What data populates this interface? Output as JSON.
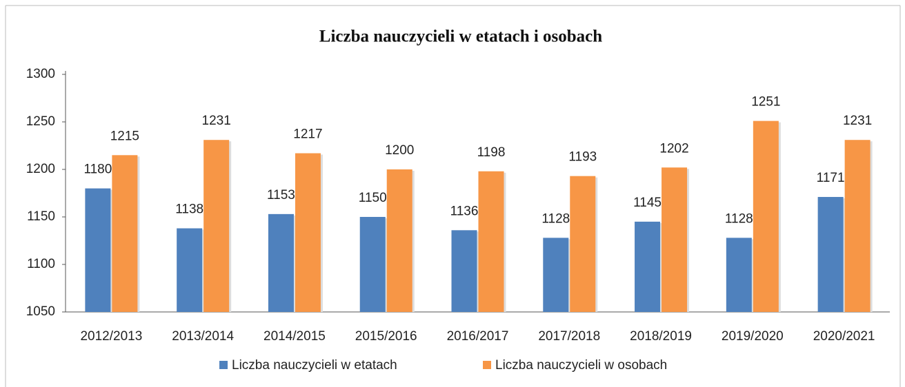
{
  "chart_data": {
    "type": "bar",
    "title": "Liczba  nauczycieli  w etatach i osobach",
    "categories": [
      "2012/2013",
      "2013/2014",
      "2014/2015",
      "2015/2016",
      "2016/2017",
      "2017/2018",
      "2018/2019",
      "2019/2020",
      "2020/2021"
    ],
    "series": [
      {
        "name": "Liczba nauczycieli w etatach",
        "color": "#4f81bd",
        "values": [
          1180,
          1138,
          1153,
          1150,
          1136,
          1128,
          1145,
          1128,
          1171
        ]
      },
      {
        "name": "Liczba nauczycieli w osobach",
        "color": "#f79646",
        "values": [
          1215,
          1231,
          1217,
          1200,
          1198,
          1193,
          1202,
          1251,
          1231
        ]
      }
    ],
    "ylim": [
      1050,
      1300
    ],
    "yticks": [
      1050,
      1100,
      1150,
      1200,
      1250,
      1300
    ],
    "grid": false,
    "legend": "bottom"
  }
}
